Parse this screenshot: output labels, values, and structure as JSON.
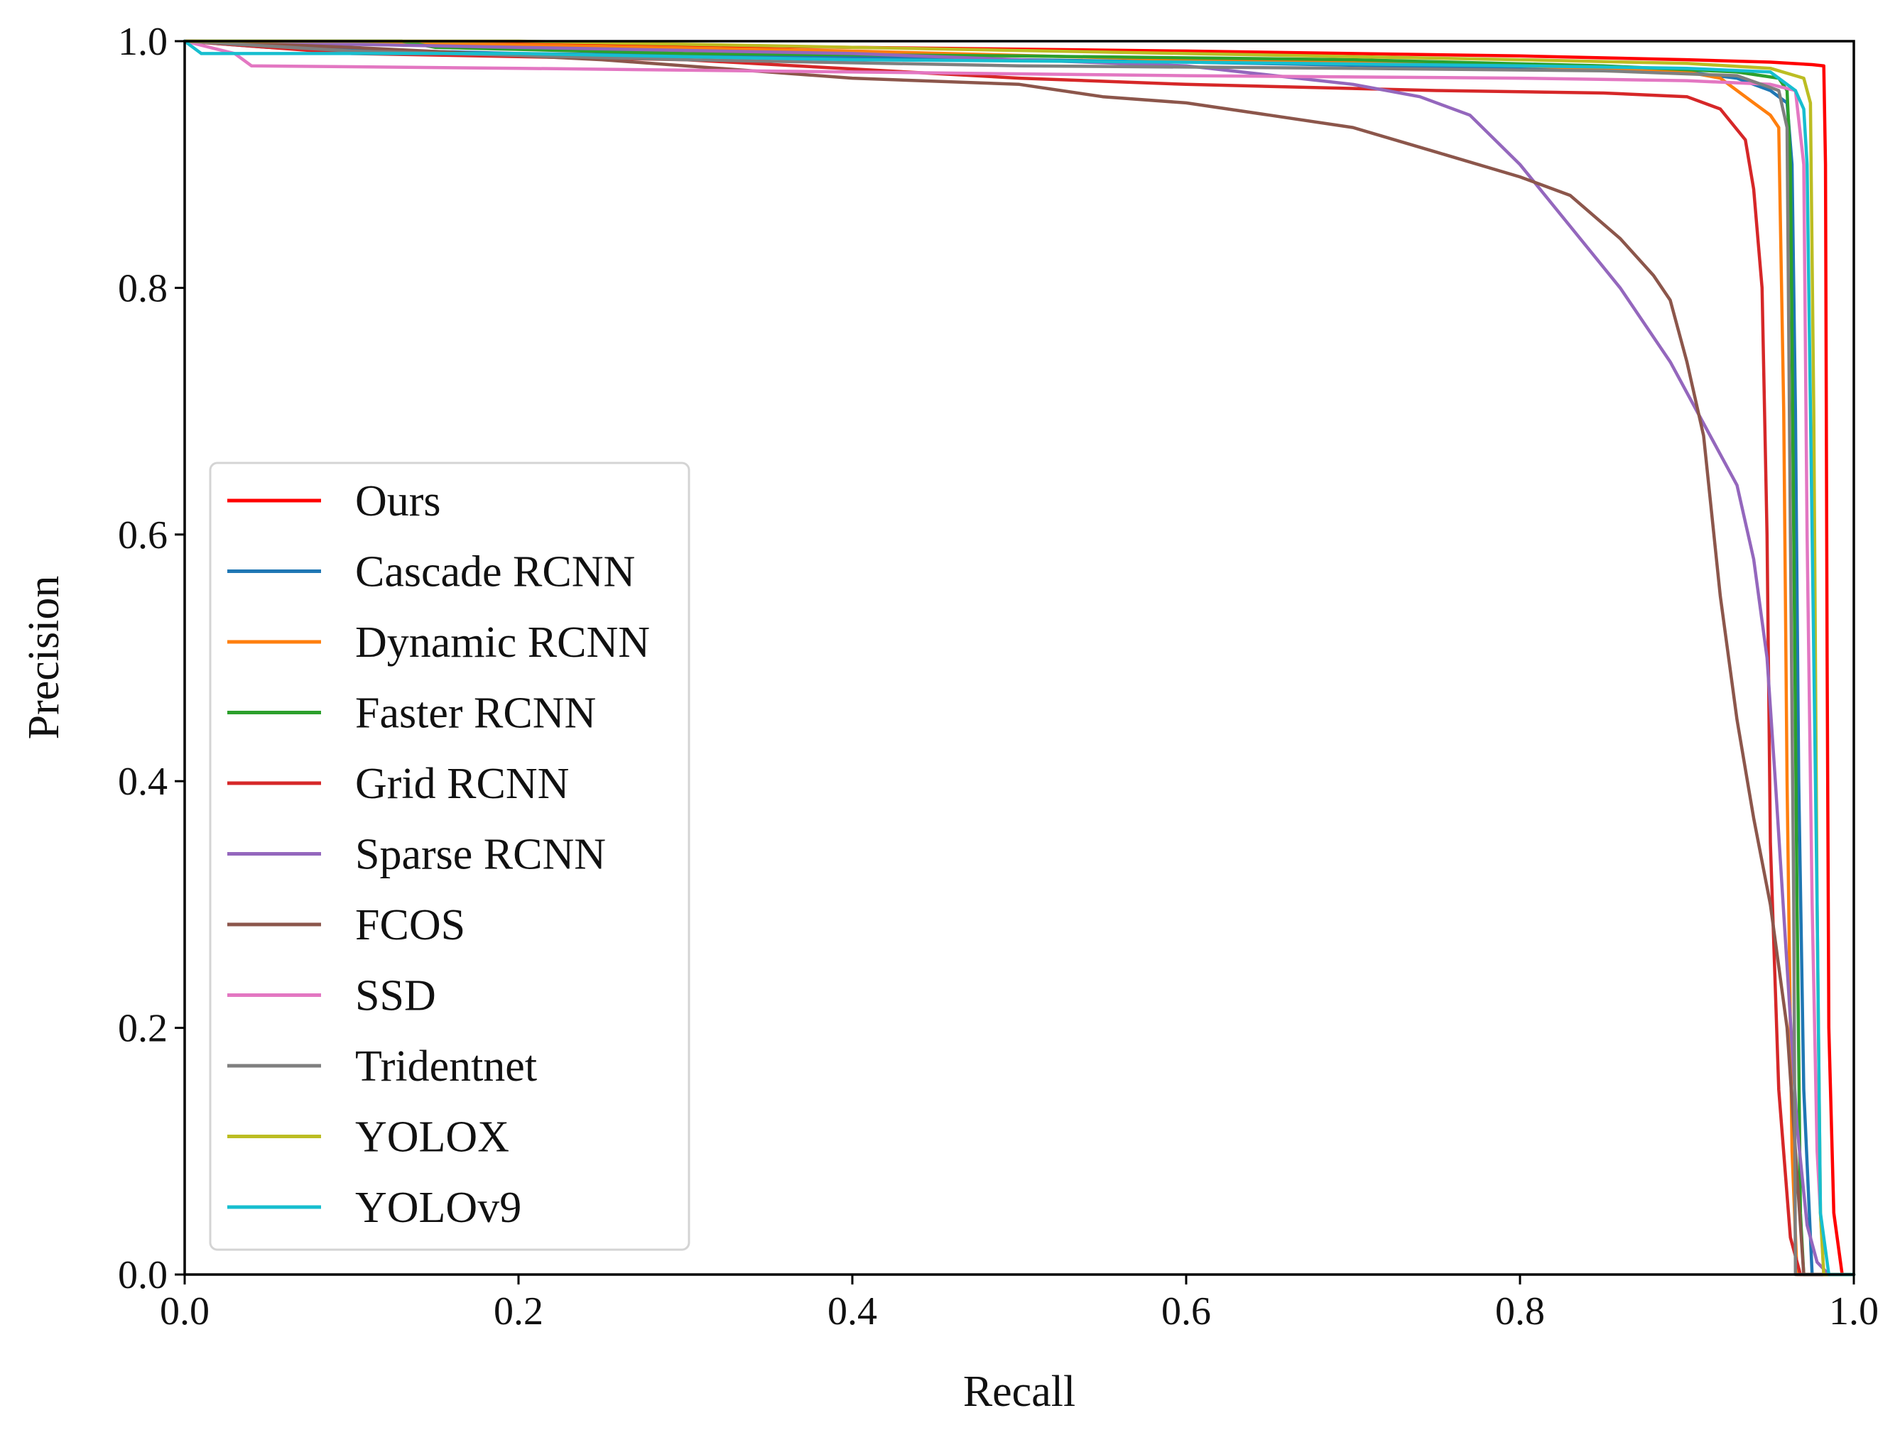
{
  "chart_data": {
    "type": "line",
    "title": "",
    "xlabel": "Recall",
    "ylabel": "Precision",
    "xlim": [
      0.0,
      1.0
    ],
    "ylim": [
      0.0,
      1.0
    ],
    "xticks": [
      "0.0",
      "0.2",
      "0.4",
      "0.6",
      "0.8",
      "1.0"
    ],
    "yticks": [
      "0.0",
      "0.2",
      "0.4",
      "0.6",
      "0.8",
      "1.0"
    ],
    "grid": false,
    "legend_position": "center-left",
    "series": [
      {
        "name": "Ours",
        "color": "#ff0000",
        "points": [
          [
            0,
            1.0
          ],
          [
            0.2,
            0.998
          ],
          [
            0.4,
            0.995
          ],
          [
            0.6,
            0.992
          ],
          [
            0.8,
            0.988
          ],
          [
            0.9,
            0.985
          ],
          [
            0.95,
            0.983
          ],
          [
            0.975,
            0.981
          ],
          [
            0.982,
            0.98
          ],
          [
            0.983,
            0.9
          ],
          [
            0.984,
            0.5
          ],
          [
            0.985,
            0.2
          ],
          [
            0.988,
            0.05
          ],
          [
            0.993,
            0.0
          ],
          [
            1.0,
            0.0
          ]
        ]
      },
      {
        "name": "Cascade RCNN",
        "color": "#1f77b4",
        "points": [
          [
            0,
            1.0
          ],
          [
            0.05,
            0.995
          ],
          [
            0.2,
            0.99
          ],
          [
            0.4,
            0.987
          ],
          [
            0.6,
            0.983
          ],
          [
            0.8,
            0.978
          ],
          [
            0.9,
            0.975
          ],
          [
            0.93,
            0.97
          ],
          [
            0.95,
            0.96
          ],
          [
            0.96,
            0.95
          ],
          [
            0.963,
            0.9
          ],
          [
            0.965,
            0.7
          ],
          [
            0.967,
            0.4
          ],
          [
            0.97,
            0.15
          ],
          [
            0.975,
            0.0
          ],
          [
            1.0,
            0.0
          ]
        ]
      },
      {
        "name": "Dynamic RCNN",
        "color": "#ff7f0e",
        "points": [
          [
            0,
            1.0
          ],
          [
            0.2,
            0.997
          ],
          [
            0.4,
            0.992
          ],
          [
            0.6,
            0.985
          ],
          [
            0.8,
            0.98
          ],
          [
            0.9,
            0.975
          ],
          [
            0.92,
            0.97
          ],
          [
            0.94,
            0.95
          ],
          [
            0.95,
            0.94
          ],
          [
            0.955,
            0.93
          ],
          [
            0.958,
            0.7
          ],
          [
            0.96,
            0.4
          ],
          [
            0.963,
            0.1
          ],
          [
            0.966,
            0.0
          ],
          [
            1.0,
            0.0
          ]
        ]
      },
      {
        "name": "Faster RCNN",
        "color": "#2ca02c",
        "points": [
          [
            0,
            1.0
          ],
          [
            0.13,
            1.0
          ],
          [
            0.15,
            0.995
          ],
          [
            0.3,
            0.99
          ],
          [
            0.5,
            0.988
          ],
          [
            0.7,
            0.985
          ],
          [
            0.85,
            0.98
          ],
          [
            0.93,
            0.975
          ],
          [
            0.955,
            0.97
          ],
          [
            0.96,
            0.96
          ],
          [
            0.962,
            0.9
          ],
          [
            0.964,
            0.6
          ],
          [
            0.966,
            0.3
          ],
          [
            0.968,
            0.05
          ],
          [
            0.97,
            0.0
          ],
          [
            1.0,
            0.0
          ]
        ]
      },
      {
        "name": "Grid RCNN",
        "color": "#d62728",
        "points": [
          [
            0,
            1.0
          ],
          [
            0.1,
            0.99
          ],
          [
            0.3,
            0.985
          ],
          [
            0.5,
            0.97
          ],
          [
            0.6,
            0.965
          ],
          [
            0.75,
            0.96
          ],
          [
            0.85,
            0.958
          ],
          [
            0.9,
            0.955
          ],
          [
            0.92,
            0.945
          ],
          [
            0.935,
            0.92
          ],
          [
            0.94,
            0.88
          ],
          [
            0.945,
            0.8
          ],
          [
            0.948,
            0.6
          ],
          [
            0.95,
            0.35
          ],
          [
            0.955,
            0.15
          ],
          [
            0.962,
            0.03
          ],
          [
            0.968,
            0.0
          ],
          [
            1.0,
            0.0
          ]
        ]
      },
      {
        "name": "Sparse RCNN",
        "color": "#9467bd",
        "points": [
          [
            0,
            1.0
          ],
          [
            0.2,
            0.995
          ],
          [
            0.4,
            0.99
          ],
          [
            0.5,
            0.985
          ],
          [
            0.6,
            0.98
          ],
          [
            0.7,
            0.965
          ],
          [
            0.74,
            0.955
          ],
          [
            0.77,
            0.94
          ],
          [
            0.8,
            0.9
          ],
          [
            0.83,
            0.85
          ],
          [
            0.86,
            0.8
          ],
          [
            0.89,
            0.74
          ],
          [
            0.91,
            0.69
          ],
          [
            0.93,
            0.64
          ],
          [
            0.94,
            0.58
          ],
          [
            0.948,
            0.5
          ],
          [
            0.953,
            0.4
          ],
          [
            0.96,
            0.25
          ],
          [
            0.966,
            0.12
          ],
          [
            0.972,
            0.04
          ],
          [
            0.978,
            0.01
          ],
          [
            0.985,
            0.0
          ],
          [
            1.0,
            0.0
          ]
        ]
      },
      {
        "name": "FCOS",
        "color": "#8c564b",
        "points": [
          [
            0,
            1.0
          ],
          [
            0.1,
            0.995
          ],
          [
            0.25,
            0.985
          ],
          [
            0.4,
            0.97
          ],
          [
            0.5,
            0.965
          ],
          [
            0.55,
            0.955
          ],
          [
            0.6,
            0.95
          ],
          [
            0.65,
            0.94
          ],
          [
            0.7,
            0.93
          ],
          [
            0.75,
            0.91
          ],
          [
            0.8,
            0.89
          ],
          [
            0.83,
            0.875
          ],
          [
            0.86,
            0.84
          ],
          [
            0.88,
            0.81
          ],
          [
            0.89,
            0.79
          ],
          [
            0.9,
            0.74
          ],
          [
            0.91,
            0.68
          ],
          [
            0.92,
            0.55
          ],
          [
            0.93,
            0.45
          ],
          [
            0.94,
            0.37
          ],
          [
            0.95,
            0.3
          ],
          [
            0.96,
            0.2
          ],
          [
            0.965,
            0.1
          ],
          [
            0.97,
            0.0
          ],
          [
            1.0,
            0.0
          ]
        ]
      },
      {
        "name": "SSD",
        "color": "#e377c2",
        "points": [
          [
            0,
            1.0
          ],
          [
            0.03,
            0.99
          ],
          [
            0.04,
            0.98
          ],
          [
            0.2,
            0.978
          ],
          [
            0.4,
            0.975
          ],
          [
            0.6,
            0.972
          ],
          [
            0.8,
            0.97
          ],
          [
            0.9,
            0.968
          ],
          [
            0.95,
            0.965
          ],
          [
            0.965,
            0.96
          ],
          [
            0.97,
            0.9
          ],
          [
            0.972,
            0.6
          ],
          [
            0.975,
            0.3
          ],
          [
            0.978,
            0.1
          ],
          [
            0.982,
            0.0
          ],
          [
            1.0,
            0.0
          ]
        ]
      },
      {
        "name": "Tridentnet",
        "color": "#7f7f7f",
        "points": [
          [
            0,
            1.0
          ],
          [
            0.1,
            0.992
          ],
          [
            0.3,
            0.985
          ],
          [
            0.5,
            0.98
          ],
          [
            0.7,
            0.978
          ],
          [
            0.85,
            0.976
          ],
          [
            0.93,
            0.972
          ],
          [
            0.955,
            0.96
          ],
          [
            0.96,
            0.93
          ],
          [
            0.962,
            0.6
          ],
          [
            0.964,
            0.3
          ],
          [
            0.965,
            0.0
          ],
          [
            1.0,
            0.0
          ]
        ]
      },
      {
        "name": "YOLOX",
        "color": "#bcbd22",
        "points": [
          [
            0,
            1.0
          ],
          [
            0.2,
            1.0
          ],
          [
            0.4,
            0.995
          ],
          [
            0.6,
            0.99
          ],
          [
            0.8,
            0.985
          ],
          [
            0.9,
            0.982
          ],
          [
            0.95,
            0.978
          ],
          [
            0.97,
            0.97
          ],
          [
            0.974,
            0.95
          ],
          [
            0.976,
            0.7
          ],
          [
            0.978,
            0.3
          ],
          [
            0.98,
            0.05
          ],
          [
            0.982,
            0.0
          ],
          [
            1.0,
            0.0
          ]
        ]
      },
      {
        "name": "YOLOv9",
        "color": "#17becf",
        "points": [
          [
            0,
            1.0
          ],
          [
            0.01,
            0.99
          ],
          [
            0.2,
            0.99
          ],
          [
            0.4,
            0.985
          ],
          [
            0.6,
            0.983
          ],
          [
            0.8,
            0.98
          ],
          [
            0.9,
            0.978
          ],
          [
            0.95,
            0.975
          ],
          [
            0.965,
            0.96
          ],
          [
            0.97,
            0.945
          ],
          [
            0.972,
            0.9
          ],
          [
            0.975,
            0.6
          ],
          [
            0.978,
            0.3
          ],
          [
            0.98,
            0.05
          ],
          [
            0.985,
            0.0
          ],
          [
            1.0,
            0.0
          ]
        ]
      }
    ]
  }
}
